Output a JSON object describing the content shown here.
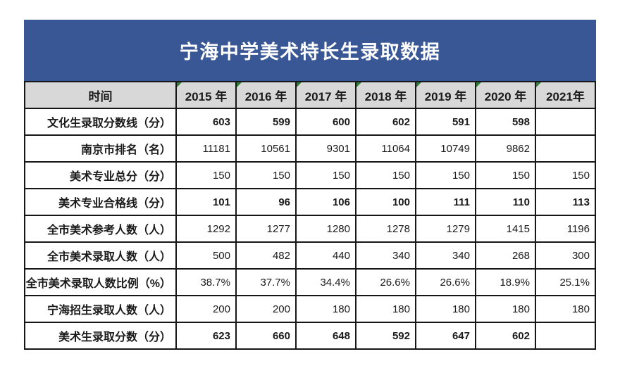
{
  "title_banner": {
    "text": "宁海中学美术特长生录取数据"
  },
  "colors": {
    "banner_blue": "#3a5795",
    "header_gray": "#d8d8d8",
    "border_black": "#161616",
    "indicator_green": "#2e7d32",
    "text": "#1a1a1a"
  },
  "chart_data": {
    "type": "table",
    "title": "宁海中学美术特长生录取数据",
    "corner_header": "时间",
    "year_headers": [
      "2015 年",
      "2016 年",
      "2017 年",
      "2018 年",
      "2019 年",
      "2020 年",
      "2021年"
    ],
    "rows": [
      {
        "label": "文化生录取分数线（分）",
        "bold": true,
        "values": [
          "603",
          "599",
          "600",
          "602",
          "591",
          "598",
          ""
        ]
      },
      {
        "label": "南京市排名（名）",
        "bold": false,
        "values": [
          "11181",
          "10561",
          "9301",
          "11064",
          "10749",
          "9862",
          ""
        ]
      },
      {
        "label": "美术专业总分（分）",
        "bold": false,
        "values": [
          "150",
          "150",
          "150",
          "150",
          "150",
          "150",
          "150"
        ]
      },
      {
        "label": "美术专业合格线（分）",
        "bold": true,
        "values": [
          "101",
          "96",
          "106",
          "100",
          "111",
          "110",
          "113"
        ]
      },
      {
        "label": "全市美术参考人数（人）",
        "bold": false,
        "values": [
          "1292",
          "1277",
          "1280",
          "1278",
          "1279",
          "1415",
          "1196"
        ]
      },
      {
        "label": "全市美术录取人数（人）",
        "bold": false,
        "values": [
          "500",
          "482",
          "440",
          "340",
          "340",
          "268",
          "300"
        ]
      },
      {
        "label": "全市美术录取人数比例（%）",
        "bold": false,
        "values": [
          "38.7%",
          "37.7%",
          "34.4%",
          "26.6%",
          "26.6%",
          "18.9%",
          "25.1%"
        ]
      },
      {
        "label": "宁海招生录取人数（人）",
        "bold": false,
        "values": [
          "200",
          "200",
          "180",
          "180",
          "180",
          "180",
          "180"
        ]
      },
      {
        "label": "美术生录取分数（分）",
        "bold": true,
        "values": [
          "623",
          "660",
          "648",
          "592",
          "647",
          "602",
          ""
        ]
      }
    ]
  }
}
